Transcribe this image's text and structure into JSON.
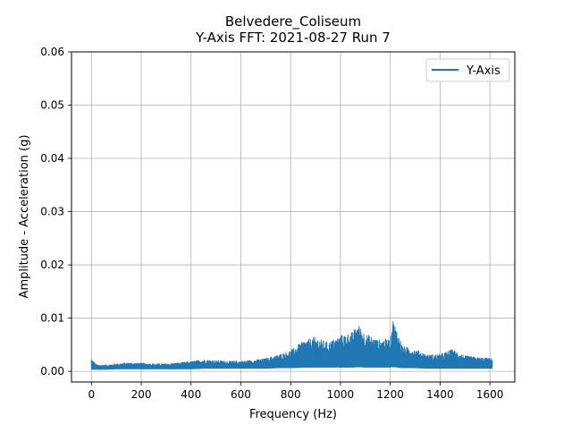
{
  "chart_data": {
    "type": "line",
    "title": "Belvedere_Coliseum",
    "subtitle": "Y-Axis FFT: 2021-08-27 Run 7",
    "xlabel": "Frequency (Hz)",
    "ylabel": "Amplitude - Acceleration (g)",
    "xlim": [
      -80,
      1700
    ],
    "ylim": [
      -0.002,
      0.06
    ],
    "xticks": [
      0,
      200,
      400,
      600,
      800,
      1000,
      1200,
      1400,
      1600
    ],
    "xtick_labels": [
      "0",
      "200",
      "400",
      "600",
      "800",
      "1000",
      "1200",
      "1400",
      "1600"
    ],
    "yticks": [
      0.0,
      0.01,
      0.02,
      0.03,
      0.04,
      0.05,
      0.06
    ],
    "ytick_labels": [
      "0.00",
      "0.01",
      "0.02",
      "0.03",
      "0.04",
      "0.05",
      "0.06"
    ],
    "grid": true,
    "legend": {
      "position": "top-right",
      "entries": [
        "Y-Axis"
      ]
    },
    "series": [
      {
        "name": "Y-Axis",
        "color": "#1f77b4",
        "x": [
          0,
          20,
          60,
          100,
          150,
          200,
          250,
          300,
          350,
          400,
          450,
          500,
          550,
          600,
          650,
          700,
          750,
          800,
          850,
          900,
          950,
          1000,
          1050,
          1070,
          1100,
          1150,
          1200,
          1210,
          1250,
          1300,
          1350,
          1400,
          1450,
          1500,
          1550,
          1610
        ],
        "y_upper": [
          0.0025,
          0.0013,
          0.0013,
          0.0015,
          0.0017,
          0.0016,
          0.0015,
          0.0015,
          0.0017,
          0.0019,
          0.0023,
          0.0021,
          0.002,
          0.002,
          0.0022,
          0.0025,
          0.0032,
          0.004,
          0.0058,
          0.0065,
          0.0055,
          0.0068,
          0.0075,
          0.009,
          0.0072,
          0.006,
          0.0062,
          0.01,
          0.0048,
          0.0042,
          0.0032,
          0.0033,
          0.0042,
          0.003,
          0.0027,
          0.0025
        ],
        "y_lower": [
          0.0003,
          0.0003,
          0.0003,
          0.0004,
          0.0004,
          0.0004,
          0.0004,
          0.0004,
          0.0004,
          0.0004,
          0.0005,
          0.0005,
          0.0005,
          0.0005,
          0.0005,
          0.0005,
          0.0006,
          0.0006,
          0.0007,
          0.0007,
          0.0007,
          0.0007,
          0.0007,
          0.0008,
          0.0007,
          0.0007,
          0.0007,
          0.0008,
          0.0006,
          0.0006,
          0.0005,
          0.0005,
          0.0005,
          0.0005,
          0.0005,
          0.0005
        ]
      }
    ]
  }
}
